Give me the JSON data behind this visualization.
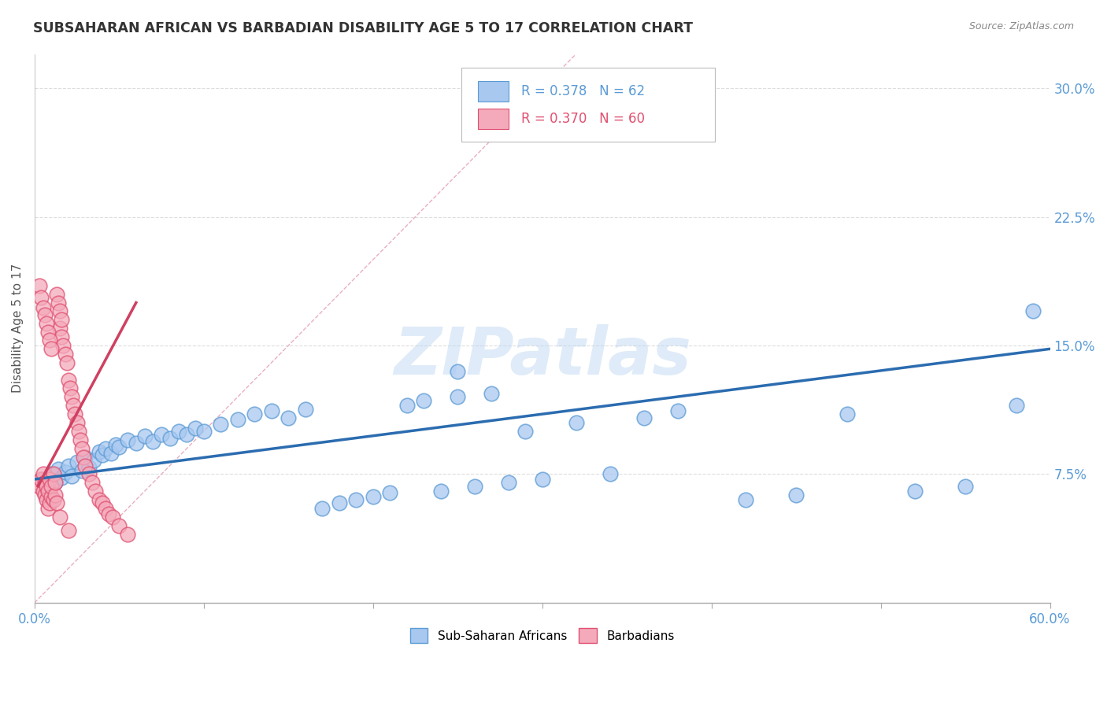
{
  "title": "SUBSAHARAN AFRICAN VS BARBADIAN DISABILITY AGE 5 TO 17 CORRELATION CHART",
  "source": "Source: ZipAtlas.com",
  "ylabel": "Disability Age 5 to 17",
  "xlim": [
    0.0,
    0.6
  ],
  "ylim": [
    0.0,
    0.32
  ],
  "xticks": [
    0.0,
    0.1,
    0.2,
    0.3,
    0.4,
    0.5,
    0.6
  ],
  "xticklabels": [
    "0.0%",
    "",
    "",
    "",
    "",
    "",
    "60.0%"
  ],
  "yticks": [
    0.075,
    0.15,
    0.225,
    0.3
  ],
  "yticklabels": [
    "7.5%",
    "15.0%",
    "22.5%",
    "30.0%"
  ],
  "blue_fill": "#A8C8F0",
  "blue_edge": "#5B9BD5",
  "pink_fill": "#F4AABB",
  "pink_edge": "#E05070",
  "blue_line_color": "#2B6CB0",
  "pink_line_color": "#D04060",
  "ref_line_color": "#E8B0C0",
  "legend_r_blue": "R = 0.378",
  "legend_n_blue": "N = 62",
  "legend_r_pink": "R = 0.370",
  "legend_n_pink": "N = 60",
  "legend_label_blue": "Sub-Saharan Africans",
  "legend_label_pink": "Barbadians",
  "blue_scatter_x": [
    0.005,
    0.008,
    0.01,
    0.012,
    0.014,
    0.016,
    0.018,
    0.02,
    0.022,
    0.025,
    0.028,
    0.03,
    0.032,
    0.035,
    0.038,
    0.04,
    0.042,
    0.045,
    0.048,
    0.05,
    0.055,
    0.06,
    0.065,
    0.07,
    0.075,
    0.08,
    0.085,
    0.09,
    0.095,
    0.1,
    0.11,
    0.12,
    0.13,
    0.14,
    0.15,
    0.16,
    0.17,
    0.18,
    0.19,
    0.2,
    0.21,
    0.22,
    0.23,
    0.24,
    0.25,
    0.26,
    0.27,
    0.28,
    0.29,
    0.3,
    0.32,
    0.34,
    0.36,
    0.38,
    0.42,
    0.45,
    0.48,
    0.52,
    0.55,
    0.58,
    0.25,
    0.59
  ],
  "blue_scatter_y": [
    0.072,
    0.068,
    0.075,
    0.07,
    0.078,
    0.073,
    0.076,
    0.08,
    0.074,
    0.082,
    0.077,
    0.085,
    0.079,
    0.083,
    0.088,
    0.086,
    0.09,
    0.087,
    0.092,
    0.091,
    0.095,
    0.093,
    0.097,
    0.094,
    0.098,
    0.096,
    0.1,
    0.098,
    0.102,
    0.1,
    0.104,
    0.107,
    0.11,
    0.112,
    0.108,
    0.113,
    0.055,
    0.058,
    0.06,
    0.062,
    0.064,
    0.115,
    0.118,
    0.065,
    0.12,
    0.068,
    0.122,
    0.07,
    0.1,
    0.072,
    0.105,
    0.075,
    0.108,
    0.112,
    0.06,
    0.063,
    0.11,
    0.065,
    0.068,
    0.115,
    0.135,
    0.17
  ],
  "pink_scatter_x": [
    0.002,
    0.003,
    0.004,
    0.005,
    0.005,
    0.006,
    0.006,
    0.007,
    0.007,
    0.008,
    0.008,
    0.009,
    0.009,
    0.01,
    0.01,
    0.011,
    0.011,
    0.012,
    0.012,
    0.013,
    0.013,
    0.014,
    0.015,
    0.015,
    0.016,
    0.016,
    0.017,
    0.018,
    0.019,
    0.02,
    0.021,
    0.022,
    0.023,
    0.024,
    0.025,
    0.026,
    0.027,
    0.028,
    0.029,
    0.03,
    0.032,
    0.034,
    0.036,
    0.038,
    0.04,
    0.042,
    0.044,
    0.046,
    0.05,
    0.055,
    0.003,
    0.004,
    0.005,
    0.006,
    0.007,
    0.008,
    0.009,
    0.01,
    0.015,
    0.02
  ],
  "pink_scatter_y": [
    0.07,
    0.068,
    0.072,
    0.065,
    0.075,
    0.063,
    0.07,
    0.06,
    0.068,
    0.055,
    0.065,
    0.058,
    0.072,
    0.062,
    0.068,
    0.06,
    0.075,
    0.063,
    0.07,
    0.058,
    0.18,
    0.175,
    0.17,
    0.16,
    0.165,
    0.155,
    0.15,
    0.145,
    0.14,
    0.13,
    0.125,
    0.12,
    0.115,
    0.11,
    0.105,
    0.1,
    0.095,
    0.09,
    0.085,
    0.08,
    0.075,
    0.07,
    0.065,
    0.06,
    0.058,
    0.055,
    0.052,
    0.05,
    0.045,
    0.04,
    0.185,
    0.178,
    0.172,
    0.168,
    0.163,
    0.158,
    0.153,
    0.148,
    0.05,
    0.042
  ],
  "blue_trend_x": [
    0.0,
    0.6
  ],
  "blue_trend_y": [
    0.072,
    0.148
  ],
  "pink_trend_x": [
    0.002,
    0.06
  ],
  "pink_trend_y": [
    0.068,
    0.175
  ],
  "ref_line_x": [
    0.0,
    0.32
  ],
  "ref_line_y": [
    0.0,
    0.32
  ],
  "watermark": "ZIPatlas",
  "background_color": "#ffffff",
  "grid_color": "#dddddd"
}
